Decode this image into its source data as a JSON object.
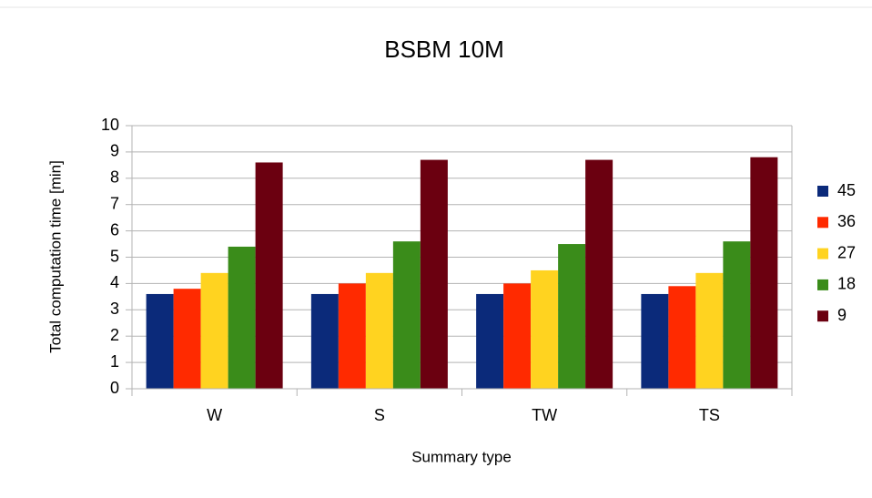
{
  "chart_data": {
    "type": "bar",
    "title": "BSBM 10M",
    "x_label": "Summary type",
    "y_label": "Total computation time [min]",
    "categories": [
      "W",
      "S",
      "TW",
      "TS"
    ],
    "series": [
      {
        "name": "45",
        "color": "#0b2a7a",
        "values": [
          3.6,
          3.6,
          3.6,
          3.6
        ]
      },
      {
        "name": "36",
        "color": "#ff2a00",
        "values": [
          3.8,
          4.0,
          4.0,
          3.9
        ]
      },
      {
        "name": "27",
        "color": "#ffd320",
        "values": [
          4.4,
          4.4,
          4.5,
          4.4
        ]
      },
      {
        "name": "18",
        "color": "#3a8c1a",
        "values": [
          5.4,
          5.6,
          5.5,
          5.6
        ]
      },
      {
        "name": "9",
        "color": "#6b0010",
        "values": [
          8.6,
          8.7,
          8.7,
          8.8
        ]
      }
    ],
    "ylim": [
      0,
      10
    ],
    "yticks": [
      0,
      1,
      2,
      3,
      4,
      5,
      6,
      7,
      8,
      9,
      10
    ],
    "grid": true,
    "legend": "right"
  }
}
